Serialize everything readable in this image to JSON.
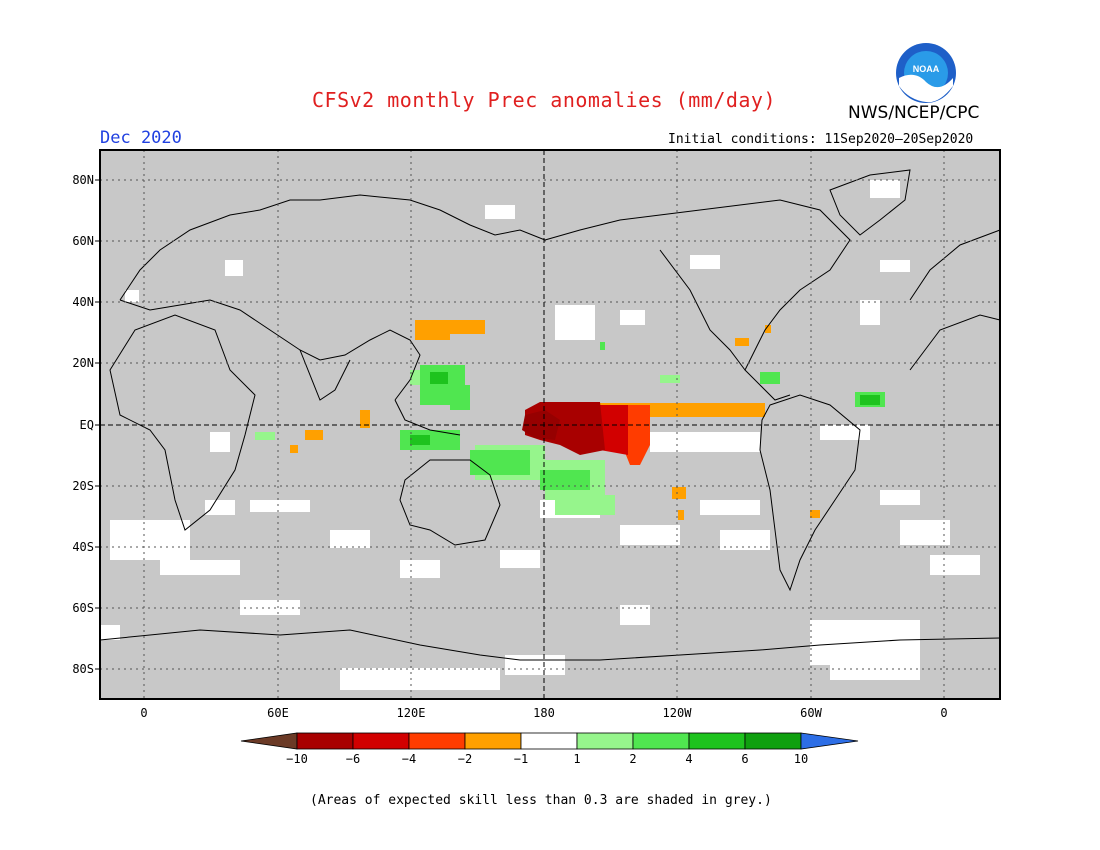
{
  "title": "CFSv2 monthly Prec anomalies (mm/day)",
  "organization": "NWS/NCEP/CPC",
  "logo_text": "NOAA",
  "month": "Dec 2020",
  "initial_conditions": "Initial conditions: 11Sep2020—20Sep2020",
  "latitude_labels": [
    "80N",
    "60N",
    "40N",
    "20N",
    "EQ",
    "20S",
    "40S",
    "60S",
    "80S"
  ],
  "longitude_labels": [
    "0",
    "60E",
    "120E",
    "180",
    "120W",
    "60W",
    "0"
  ],
  "colorbar": {
    "labels": [
      "−10",
      "−6",
      "−4",
      "−2",
      "−1",
      "1",
      "2",
      "4",
      "6",
      "10"
    ],
    "colors": [
      "#6b3a26",
      "#a80000",
      "#d20000",
      "#ff3c00",
      "#ffa000",
      "#ffffff",
      "#96f58c",
      "#50e650",
      "#1ec31e",
      "#0fa00f",
      "#2d6ee6"
    ]
  },
  "background_color": "#c8c8c8",
  "footnote": "(Areas of expected skill less than 0.3 are shaded in grey.)"
}
